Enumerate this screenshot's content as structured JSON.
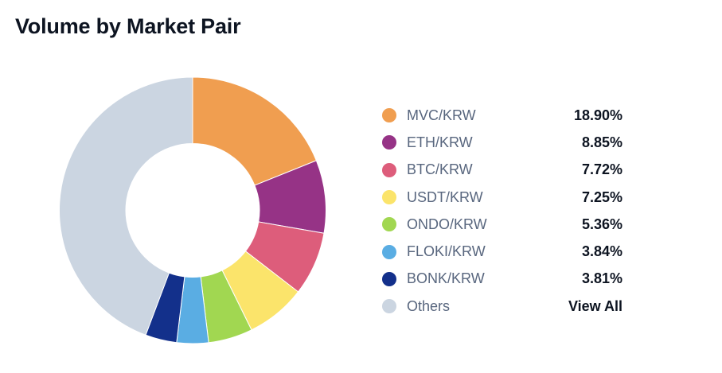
{
  "header": {
    "title": "Volume by Market Pair"
  },
  "chart_data": {
    "type": "pie",
    "variant": "donut",
    "title": "Volume by Market Pair",
    "unit": "%",
    "categories": [
      "MVC/KRW",
      "ETH/KRW",
      "BTC/KRW",
      "USDT/KRW",
      "ONDO/KRW",
      "FLOKI/KRW",
      "BONK/KRW",
      "Others"
    ],
    "values": [
      18.9,
      8.85,
      7.72,
      7.25,
      5.36,
      3.84,
      3.81,
      44.27
    ],
    "colors": [
      "#f09e50",
      "#963386",
      "#dd5d7b",
      "#fbe46b",
      "#a1d751",
      "#5aade3",
      "#13308b",
      "#cbd5e1"
    ],
    "legend_position": "right",
    "start_angle": "top, clockwise"
  },
  "legend": {
    "items": [
      {
        "label": "MVC/KRW",
        "value": "18.90%",
        "color": "#f09e50"
      },
      {
        "label": "ETH/KRW",
        "value": "8.85%",
        "color": "#963386"
      },
      {
        "label": "BTC/KRW",
        "value": "7.72%",
        "color": "#dd5d7b"
      },
      {
        "label": "USDT/KRW",
        "value": "7.25%",
        "color": "#fbe46b"
      },
      {
        "label": "ONDO/KRW",
        "value": "5.36%",
        "color": "#a1d751"
      },
      {
        "label": "FLOKI/KRW",
        "value": "3.84%",
        "color": "#5aade3"
      },
      {
        "label": "BONK/KRW",
        "value": "3.81%",
        "color": "#13308b"
      },
      {
        "label": "Others",
        "value": "View All",
        "color": "#cbd5e1"
      }
    ]
  }
}
